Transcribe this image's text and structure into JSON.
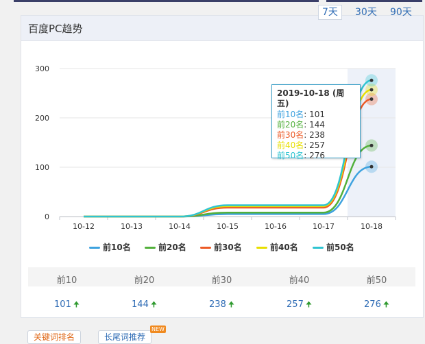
{
  "card": {
    "title": "百度PC趋势"
  },
  "ranges": [
    {
      "label": "7天",
      "active": true
    },
    {
      "label": "30天",
      "active": false
    },
    {
      "label": "90天",
      "active": false
    }
  ],
  "legend": [
    {
      "label": "前10名",
      "color": "#3ea2df"
    },
    {
      "label": "前20名",
      "color": "#52b03b"
    },
    {
      "label": "前30名",
      "color": "#ec5a26"
    },
    {
      "label": "前40名",
      "color": "#e8df00"
    },
    {
      "label": "前50名",
      "color": "#2fc4d1"
    }
  ],
  "tooltip": {
    "title": "2019-10-18 (周五)",
    "rows": [
      {
        "label": "前10名",
        "value": "101",
        "color": "#3ea2df"
      },
      {
        "label": "前20名",
        "value": "144",
        "color": "#52b03b"
      },
      {
        "label": "前30名",
        "value": "238",
        "color": "#ec5a26"
      },
      {
        "label": "前40名",
        "value": "257",
        "color": "#e8df00"
      },
      {
        "label": "前50名",
        "value": "276",
        "color": "#2fc4d1"
      }
    ]
  },
  "chart_data": {
    "type": "line",
    "x": [
      "10-12",
      "10-13",
      "10-14",
      "10-15",
      "10-16",
      "10-17",
      "10-18"
    ],
    "ylim": [
      0,
      300
    ],
    "yticks": [
      0,
      100,
      200,
      300
    ],
    "highlight_x": "10-18",
    "series": [
      {
        "name": "前10名",
        "color": "#3ea2df",
        "values": [
          0,
          0,
          0,
          5,
          5,
          5,
          101
        ]
      },
      {
        "name": "前20名",
        "color": "#52b03b",
        "values": [
          0,
          0,
          0,
          8,
          8,
          8,
          144
        ]
      },
      {
        "name": "前30名",
        "color": "#ec5a26",
        "values": [
          0,
          0,
          0,
          18,
          18,
          18,
          238
        ]
      },
      {
        "name": "前40名",
        "color": "#e8df00",
        "values": [
          0,
          0,
          0,
          21,
          21,
          21,
          257
        ]
      },
      {
        "name": "前50名",
        "color": "#2fc4d1",
        "values": [
          0,
          0,
          0,
          23,
          23,
          23,
          276
        ]
      }
    ]
  },
  "stats": {
    "headers": [
      "前10",
      "前20",
      "前30",
      "前40",
      "前50"
    ],
    "values": [
      "101",
      "144",
      "238",
      "257",
      "276"
    ],
    "trend_icon": "up-arrow-icon"
  },
  "bottom_tabs": [
    {
      "label": "关键词排名"
    },
    {
      "label": "长尾词推荐"
    }
  ],
  "new_badge": "NEW"
}
